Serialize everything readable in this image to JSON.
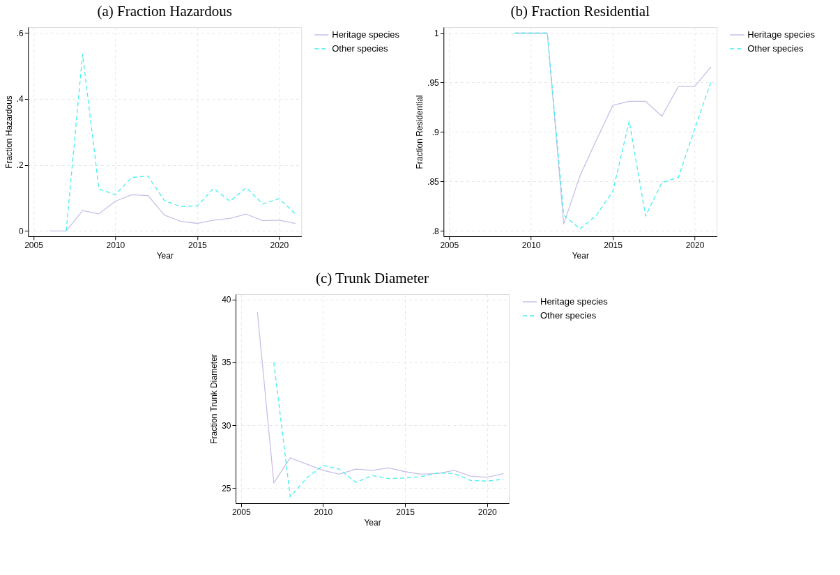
{
  "chart_data": [
    {
      "type": "line",
      "title": "(a) Fraction Hazardous",
      "xlabel": "Year",
      "ylabel": "Fraction Hazardous",
      "xlim": [
        2004.67,
        2021.36
      ],
      "xticks": [
        2005,
        2010,
        2015,
        2020
      ],
      "ylim": [
        -0.016,
        0.617
      ],
      "yticks": [
        0,
        {
          "value": 0.2,
          "label": ".2"
        },
        {
          "value": 0.4,
          "label": ".4"
        },
        {
          "value": 0.6,
          "label": ".6"
        }
      ],
      "grid": true,
      "legend": "right",
      "series": [
        {
          "name": "Heritage species",
          "color": "#c8bfe7",
          "line_style": "solid",
          "x": [
            2006,
            2007,
            2008,
            2009,
            2010,
            2011,
            2012,
            2013,
            2014,
            2015,
            2016,
            2017,
            2018,
            2019,
            2020,
            2021
          ],
          "values": [
            0,
            0,
            0.062,
            0.052,
            0.09,
            0.11,
            0.107,
            0.048,
            0.029,
            0.023,
            0.033,
            0.038,
            0.051,
            0.031,
            0.033,
            0.023
          ]
        },
        {
          "name": "Other species",
          "color": "#40f0f0",
          "line_style": "dashed",
          "x": [
            2007,
            2008,
            2009,
            2010,
            2011,
            2012,
            2013,
            2014,
            2015,
            2016,
            2017,
            2018,
            2019,
            2020,
            2021
          ],
          "values": [
            0,
            0.535,
            0.127,
            0.11,
            0.162,
            0.166,
            0.092,
            0.074,
            0.076,
            0.129,
            0.09,
            0.131,
            0.082,
            0.098,
            0.052
          ]
        }
      ]
    },
    {
      "type": "line",
      "title": "(b) Fraction Residential",
      "xlabel": "Year",
      "ylabel": "Fraction Residential",
      "xlim": [
        2004.66,
        2021.35
      ],
      "xticks": [
        2005,
        2010,
        2015,
        2020
      ],
      "ylim": [
        0.7946,
        1.006
      ],
      "yticks": [
        {
          "value": 0.8,
          "label": ".8"
        },
        {
          "value": 0.85,
          "label": ".85"
        },
        {
          "value": 0.9,
          "label": ".9"
        },
        {
          "value": 0.95,
          "label": ".95"
        },
        1
      ],
      "grid": true,
      "legend": "right",
      "series": [
        {
          "name": "Heritage species",
          "color": "#c8bfe7",
          "line_style": "solid",
          "x": [
            2009,
            2010,
            2011,
            2012,
            2013,
            2014,
            2015,
            2016,
            2017,
            2018,
            2019,
            2020,
            2021
          ],
          "values": [
            1,
            1,
            1,
            0.807,
            0.856,
            0.892,
            0.927,
            0.931,
            0.931,
            0.916,
            0.946,
            0.946,
            0.966
          ]
        },
        {
          "name": "Other species",
          "color": "#40f0f0",
          "line_style": "dashed",
          "x": [
            2009,
            2010,
            2011,
            2012,
            2013,
            2014,
            2015,
            2016,
            2017,
            2018,
            2019,
            2020,
            2021
          ],
          "values": [
            1,
            1,
            1,
            0.816,
            0.802,
            0.816,
            0.84,
            0.911,
            0.815,
            0.849,
            0.854,
            0.903,
            0.951
          ]
        }
      ]
    },
    {
      "type": "line",
      "title": "(c) Trunk Diameter",
      "xlabel": "Year",
      "ylabel": "Fraction Trunk Diameter",
      "xlim": [
        2004.67,
        2021.33
      ],
      "xticks": [
        2005,
        2010,
        2015,
        2020
      ],
      "ylim": [
        23.79,
        40.43
      ],
      "yticks": [
        25,
        30,
        35,
        40
      ],
      "grid": true,
      "legend": "right",
      "series": [
        {
          "name": "Heritage species",
          "color": "#c8bfe7",
          "line_style": "solid",
          "x": [
            2006,
            2007,
            2008,
            2009,
            2010,
            2011,
            2012,
            2013,
            2014,
            2015,
            2016,
            2017,
            2018,
            2019,
            2020,
            2021
          ],
          "values": [
            39.0,
            25.4,
            27.4,
            26.9,
            26.4,
            26.1,
            26.5,
            26.4,
            26.6,
            26.3,
            26.1,
            26.15,
            26.4,
            25.95,
            25.85,
            26.15
          ]
        },
        {
          "name": "Other species",
          "color": "#40f0f0",
          "line_style": "dashed",
          "x": [
            2007,
            2008,
            2009,
            2010,
            2011,
            2012,
            2013,
            2014,
            2015,
            2016,
            2017,
            2018,
            2019,
            2020,
            2021
          ],
          "values": [
            35.0,
            24.3,
            25.8,
            26.8,
            26.5,
            25.45,
            26.0,
            25.75,
            25.8,
            25.9,
            26.2,
            26.15,
            25.6,
            25.55,
            25.7
          ]
        }
      ]
    }
  ]
}
